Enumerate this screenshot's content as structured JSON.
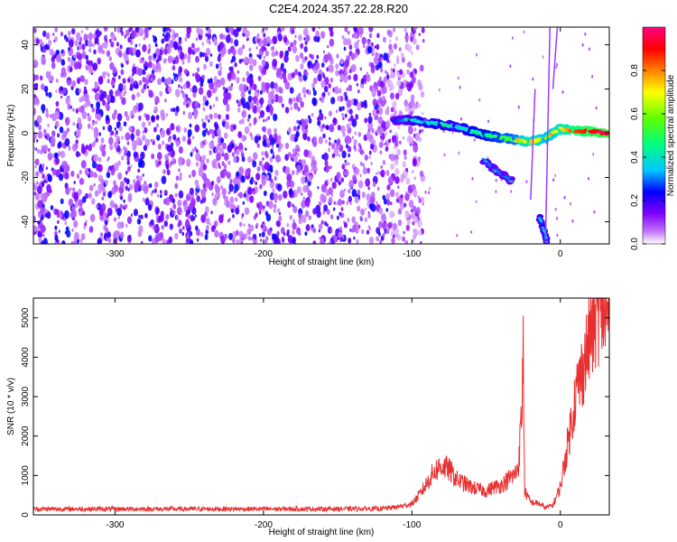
{
  "figure": {
    "title": "C2E4.2024.357.22.28.R20"
  },
  "chart_data": [
    {
      "type": "heatmap",
      "title": "C2E4.2024.357.22.28.R20",
      "xlabel": "Height of straight line (km)",
      "ylabel": "Frequency (Hz)",
      "xlim": [
        -355,
        33
      ],
      "ylim": [
        -50,
        48
      ],
      "xticks": [
        -300,
        -200,
        -100,
        0
      ],
      "yticks": [
        -40,
        -20,
        0,
        20,
        40
      ],
      "colorbar": {
        "label": "Normalized spectral amplitude",
        "range": [
          0,
          1
        ],
        "ticks": [
          0.0,
          0.2,
          0.4,
          0.6,
          0.8
        ],
        "colors": [
          "#ffffff",
          "#8000ff",
          "#0000ff",
          "#00ffff",
          "#00ff00",
          "#ffff00",
          "#ff0000",
          "#ff0080"
        ]
      },
      "features": {
        "noise_region_x": [
          -355,
          -100
        ],
        "noise_amplitude": [
          0.05,
          0.25
        ],
        "main_ridge": {
          "x": [
            -112,
            -100,
            -90,
            -80,
            -70,
            -60,
            -50,
            -40,
            -30,
            -20,
            -10,
            0,
            10,
            20,
            33
          ],
          "freq_hz": [
            6,
            6,
            5,
            4,
            3,
            1,
            -1,
            -2,
            -3,
            -4,
            -2,
            2,
            1,
            1,
            0
          ],
          "amplitude": [
            0.25,
            0.35,
            0.38,
            0.4,
            0.35,
            0.42,
            0.45,
            0.5,
            0.55,
            0.75,
            0.6,
            0.7,
            0.85,
            0.9,
            0.95
          ]
        },
        "secondary_branch": {
          "x": [
            -52,
            -45,
            -38,
            -32
          ],
          "freq_hz": [
            -12,
            -16,
            -19,
            -22
          ],
          "amplitude": 0.3
        },
        "low_branch": {
          "x": [
            -14,
            -12,
            -10,
            -9
          ],
          "freq_hz": [
            -38,
            -42,
            -46,
            -49
          ],
          "amplitude": 0.35
        }
      }
    },
    {
      "type": "line",
      "xlabel": "Height of straight line (km)",
      "ylabel": "SNR (10 * v/v)",
      "xlim": [
        -355,
        33
      ],
      "ylim": [
        0,
        5500
      ],
      "xticks": [
        -300,
        -200,
        -100,
        0
      ],
      "yticks": [
        0,
        1000,
        2000,
        3000,
        4000,
        5000
      ],
      "color": "#e83030",
      "series": [
        {
          "x": [
            -355,
            -300,
            -250,
            -200,
            -150,
            -120,
            -110,
            -100,
            -95,
            -90,
            -85,
            -80,
            -75,
            -70,
            -65,
            -60,
            -55,
            -50,
            -45,
            -40,
            -35,
            -30,
            -28,
            -26,
            -25,
            -24,
            -20,
            -15,
            -10,
            -5,
            0,
            5,
            10,
            15,
            20,
            25,
            28,
            30,
            33
          ],
          "values": [
            150,
            150,
            150,
            150,
            150,
            160,
            200,
            280,
            500,
            800,
            1100,
            1250,
            1150,
            900,
            800,
            700,
            650,
            600,
            700,
            750,
            900,
            1050,
            1350,
            2600,
            4200,
            600,
            320,
            300,
            180,
            250,
            700,
            1800,
            3000,
            3700,
            4500,
            5150,
            5300,
            5000,
            4900
          ]
        }
      ]
    }
  ]
}
